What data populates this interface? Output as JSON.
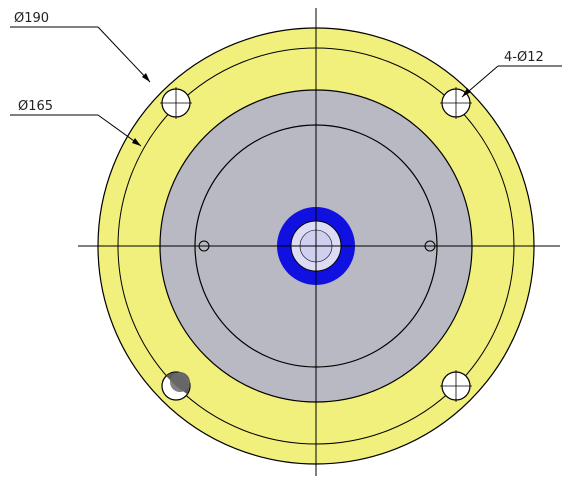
{
  "dimensions": {
    "outer_diameter": "Ø190",
    "bolt_circle_diameter": "Ø165",
    "bolt_holes": "4-Ø12"
  },
  "colors": {
    "flange": "#f1f07c",
    "plate": "#b9b9c3",
    "bore_ring": "#1010e0",
    "bore_inner": "#dcdcf4",
    "line": "#000000",
    "dark_hole": "#5a5a5a"
  }
}
